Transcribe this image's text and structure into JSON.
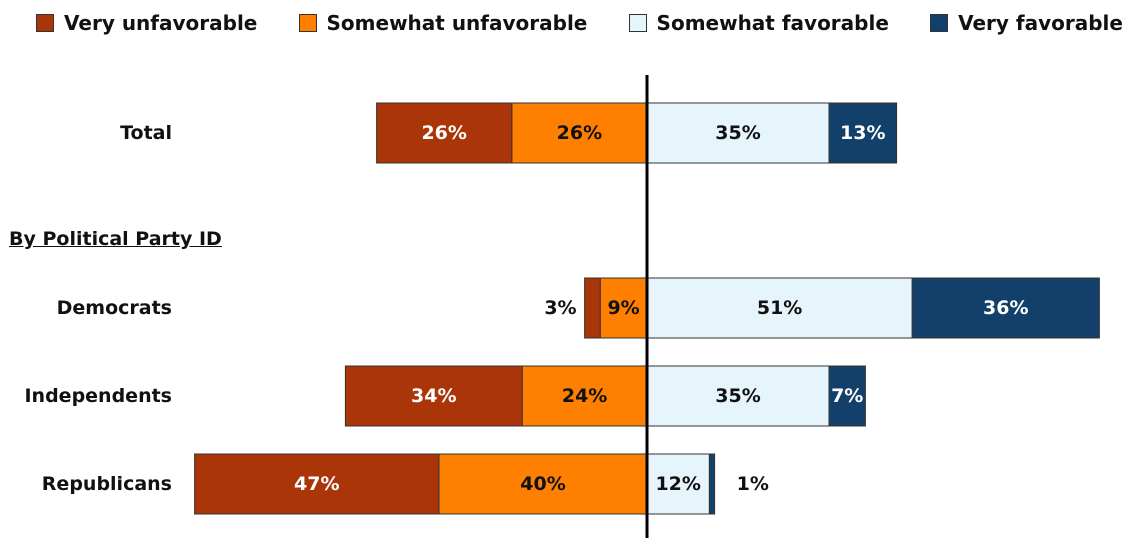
{
  "legend": {
    "very_unfav": "Very unfavorable",
    "somewhat_unfav": "Somewhat unfavorable",
    "somewhat_fav": "Somewhat favorable",
    "very_fav": "Very favorable"
  },
  "section_heading": "By Political Party ID",
  "colors": {
    "very_unfav": "#aa3508",
    "somewhat_unfav": "#ff7f00",
    "somewhat_fav": "#e6f4fb",
    "very_fav": "#13406a"
  },
  "chart_data": {
    "type": "bar",
    "orientation": "horizontal-diverging",
    "stacked": true,
    "value_unit": "%",
    "center_line": 0,
    "categories": [
      "Total",
      "Democrats",
      "Independents",
      "Republicans"
    ],
    "series": [
      {
        "key": "very_unfav",
        "name": "Very unfavorable",
        "side": "negative",
        "values": [
          26,
          3,
          34,
          47
        ]
      },
      {
        "key": "somewhat_unfav",
        "name": "Somewhat unfavorable",
        "side": "negative",
        "values": [
          26,
          9,
          24,
          40
        ]
      },
      {
        "key": "somewhat_fav",
        "name": "Somewhat favorable",
        "side": "positive",
        "values": [
          35,
          51,
          35,
          12
        ]
      },
      {
        "key": "very_fav",
        "name": "Very favorable",
        "side": "positive",
        "values": [
          13,
          36,
          7,
          1
        ]
      }
    ],
    "data_labels": [
      [
        "26%",
        "26%",
        "35%",
        "13%"
      ],
      [
        "3%",
        "9%",
        "51%",
        "36%"
      ],
      [
        "34%",
        "24%",
        "35%",
        "7%"
      ],
      [
        "47%",
        "40%",
        "12%",
        "1%"
      ]
    ],
    "legend_position": "top",
    "grid": false
  }
}
